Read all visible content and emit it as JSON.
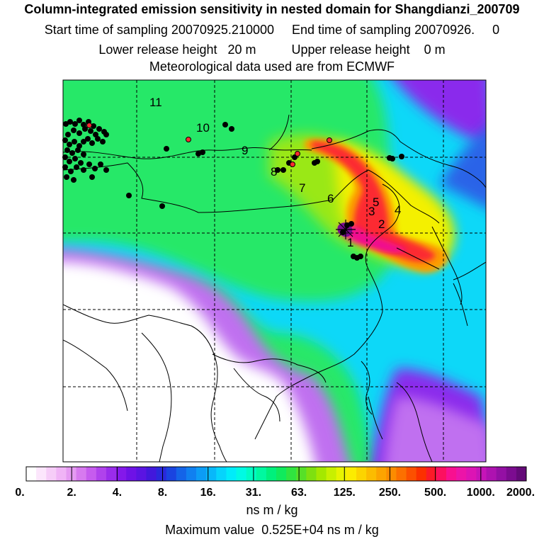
{
  "header": {
    "title": "Column-integrated emission sensitivity in nested domain for Shangdianzi_200709",
    "sampling": "Start time of sampling 20070925.210000     End time of sampling 20070926.     0",
    "release": "Lower release height   20 m          Upper release height    0 m",
    "met": "Meteorological data used are from ECMWF"
  },
  "legend": {
    "units": "ns m / kg",
    "max_value": "Maximum value  0.525E+04 ns m / kg",
    "labels": [
      "0.",
      "2.",
      "4.",
      "8.",
      "16.",
      "31.",
      "63.",
      "125.",
      "250.",
      "500.",
      "1000.",
      "2000."
    ],
    "colors": [
      "#ffffff",
      "#fce6fc",
      "#f6cdf8",
      "#f0b4f6",
      "#e59af2",
      "#d77aef",
      "#c65cee",
      "#b042ec",
      "#9a2ceb",
      "#8418ea",
      "#6e12e6",
      "#5a14e2",
      "#4218dc",
      "#2a28dc",
      "#1a44e0",
      "#1464e8",
      "#1080f0",
      "#0c9cf6",
      "#08b8fa",
      "#06d4fc",
      "#00ecfa",
      "#00fae4",
      "#00fcc4",
      "#00f8a0",
      "#00f07c",
      "#10ea5c",
      "#30e440",
      "#56e028",
      "#7ee010",
      "#a4e800",
      "#c8f000",
      "#e8f400",
      "#fcec00",
      "#fcd400",
      "#fcbc00",
      "#fca400",
      "#fc8c00",
      "#fc7000",
      "#fc5000",
      "#fc3000",
      "#fc1a28",
      "#fc1060",
      "#f81090",
      "#ec14a8",
      "#dc14b4",
      "#c614b8",
      "#ae12b0",
      "#9410a4",
      "#7c0c90",
      "#640a78"
    ]
  },
  "map": {
    "colors": {
      "low": "#ffffff",
      "violet": "#c070f0",
      "purple": "#8a2cec",
      "blue": "#2a64e8",
      "cyan": "#10d8f8",
      "green": "#28e868",
      "lime": "#9ae818",
      "yellow": "#f4f000",
      "orange": "#fc9c00",
      "red": "#fc2a30",
      "magenta": "#f01090",
      "dark": "#7a0c90"
    },
    "receptor_marker": "star",
    "day_labels": [
      "1",
      "2",
      "3",
      "4",
      "5",
      "6",
      "7",
      "8",
      "9",
      "10",
      "11"
    ]
  }
}
